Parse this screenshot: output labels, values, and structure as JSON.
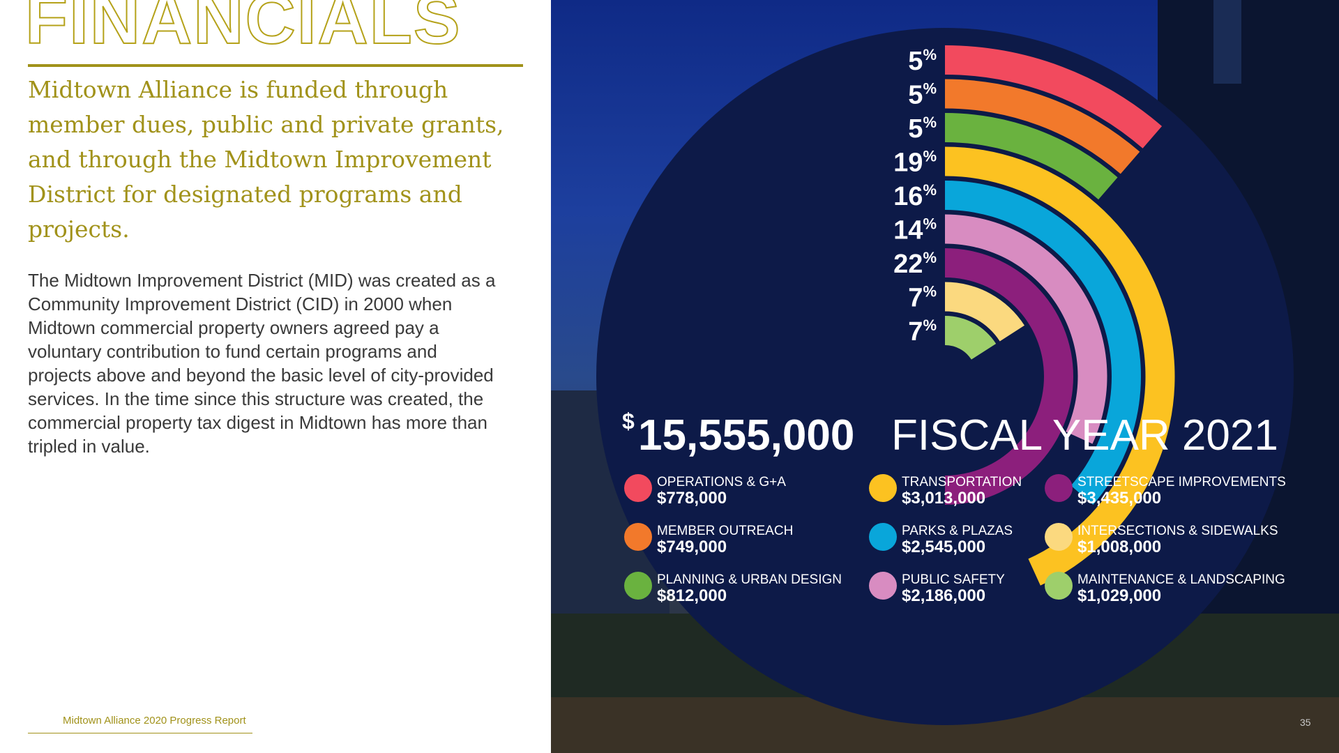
{
  "page": {
    "title": "FINANCIALS",
    "lead": "Midtown Alliance is funded through member dues, public and private grants, and through the Midtown Improvement District for designated programs and projects.",
    "body": "The Midtown Improvement District (MID) was created as a Community Improvement District (CID) in 2000 when Midtown commercial property owners agreed pay a voluntary contribution to fund certain programs and projects above and beyond the basic level of city-provided services. In the time since this structure was created, the commercial property tax digest in Midtown has more than tripled in value.",
    "footer": "Midtown Alliance 2020 Progress Report",
    "page_number": "35",
    "accent_color": "#a1921a"
  },
  "chart_data": {
    "type": "bar",
    "style": "radial",
    "total_dollar_sign": "$",
    "total_value": "15,555,000",
    "total_label": "FISCAL YEAR 2021",
    "percent_symbol": "%",
    "categories": [
      "OPERATIONS & G+A",
      "MEMBER OUTREACH",
      "PLANNING & URBAN DESIGN",
      "TRANSPORTATION",
      "PARKS & PLAZAS",
      "PUBLIC SAFETY",
      "STREETSCAPE IMPROVEMENTS",
      "INTERSECTIONS & SIDEWALKS",
      "MAINTENANCE & LANDSCAPING"
    ],
    "amounts": [
      "$778,000",
      "$749,000",
      "$812,000",
      "$3,013,000",
      "$2,545,000",
      "$2,186,000",
      "$3,435,000",
      "$1,008,000",
      "$1,029,000"
    ],
    "percent_labels": [
      "5",
      "5",
      "5",
      "19",
      "16",
      "14",
      "22",
      "7",
      "7"
    ],
    "values": [
      5,
      5,
      5,
      19,
      16,
      14,
      22,
      7,
      7
    ],
    "colors": [
      "#f24a5e",
      "#f2792b",
      "#6ab23f",
      "#fcc221",
      "#09a6da",
      "#d88cc1",
      "#8c1f7c",
      "#fbd97f",
      "#9ecf6b"
    ]
  }
}
